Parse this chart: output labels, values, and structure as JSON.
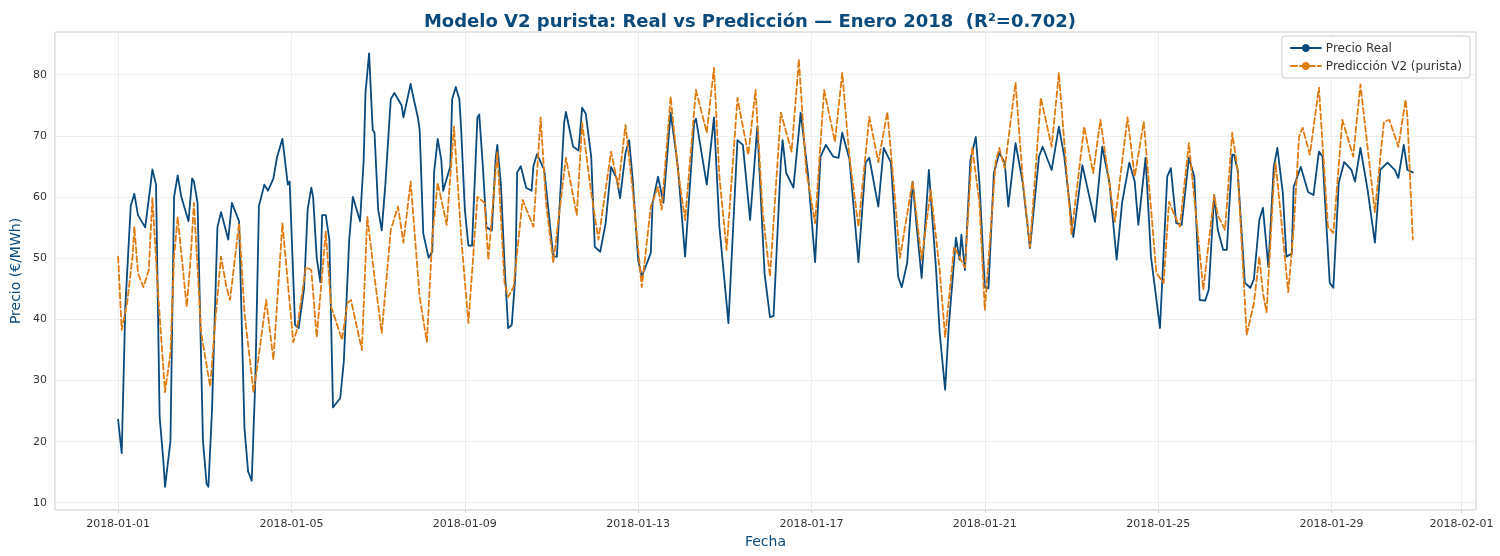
{
  "chart_data": {
    "type": "line",
    "title": "Modelo V2 purista: Real vs Predicción — Enero 2018  (R²=0.702)",
    "xlabel": "Fecha",
    "ylabel": "Precio (€/MWh)",
    "xlim": [
      "2017-12-30T13:00",
      "2018-02-01T08:00"
    ],
    "xticks": [
      "2018-01-01",
      "2018-01-05",
      "2018-01-09",
      "2018-01-13",
      "2018-01-17",
      "2018-01-21",
      "2018-01-25",
      "2018-01-29",
      "2018-02-01"
    ],
    "ylim": [
      8.7,
      87
    ],
    "yticks": [
      10,
      20,
      30,
      40,
      50,
      60,
      70,
      80
    ],
    "grid": true,
    "legend": "top right",
    "series": [
      {
        "name": "Precio Real",
        "color": "#0b4a7c",
        "line_style": "solid",
        "x": [
          "2018-01-01T00:00",
          "2018-01-01T02:00",
          "2018-01-01T04:00",
          "2018-01-01T07:00",
          "2018-01-01T09:00",
          "2018-01-01T11:00",
          "2018-01-01T15:00",
          "2018-01-01T18:00",
          "2018-01-01T19:00",
          "2018-01-01T21:00",
          "2018-01-01T23:00",
          "2018-01-02T01:00",
          "2018-01-02T02:00",
          "2018-01-02T05:00",
          "2018-01-02T07:00",
          "2018-01-02T09:00",
          "2018-01-02T11:00",
          "2018-01-02T15:00",
          "2018-01-02T17:00",
          "2018-01-02T18:00",
          "2018-01-02T20:00",
          "2018-01-02T23:00",
          "2018-01-03T01:00",
          "2018-01-03T02:00",
          "2018-01-03T04:00",
          "2018-01-03T07:00",
          "2018-01-03T09:00",
          "2018-01-03T13:00",
          "2018-01-03T15:00",
          "2018-01-03T19:00",
          "2018-01-03T22:00",
          "2018-01-04T00:00",
          "2018-01-04T02:00",
          "2018-01-04T04:00",
          "2018-01-04T06:00",
          "2018-01-04T09:00",
          "2018-01-04T11:00",
          "2018-01-04T14:00",
          "2018-01-04T16:00",
          "2018-01-04T19:00",
          "2018-01-04T22:00",
          "2018-01-04T23:00",
          "2018-01-05T02:00",
          "2018-01-05T04:00",
          "2018-01-05T07:00",
          "2018-01-05T09:00",
          "2018-01-05T11:00",
          "2018-01-05T12:00",
          "2018-01-05T14:00",
          "2018-01-05T16:00",
          "2018-01-05T17:00",
          "2018-01-05T19:00",
          "2018-01-05T21:00",
          "2018-01-05T23:00",
          "2018-01-06T03:00",
          "2018-01-06T05:00",
          "2018-01-06T08:00",
          "2018-01-06T10:00",
          "2018-01-06T14:00",
          "2018-01-06T16:00",
          "2018-01-06T17:00",
          "2018-01-06T19:00",
          "2018-01-06T21:00",
          "2018-01-06T22:00",
          "2018-01-07T00:00",
          "2018-01-07T02:00",
          "2018-01-07T04:00",
          "2018-01-07T07:00",
          "2018-01-07T09:00",
          "2018-01-07T13:00",
          "2018-01-07T14:00",
          "2018-01-07T18:00",
          "2018-01-07T19:00",
          "2018-01-07T22:00",
          "2018-01-07T23:00",
          "2018-01-08T01:00",
          "2018-01-08T04:00",
          "2018-01-08T06:00",
          "2018-01-08T07:00",
          "2018-01-08T09:00",
          "2018-01-08T11:00",
          "2018-01-08T12:00",
          "2018-01-08T16:00",
          "2018-01-08T17:00",
          "2018-01-08T19:00",
          "2018-01-08T21:00",
          "2018-01-08T22:00",
          "2018-01-09T00:00",
          "2018-01-09T02:00",
          "2018-01-09T04:00",
          "2018-01-09T06:00",
          "2018-01-09T07:00",
          "2018-01-09T08:00",
          "2018-01-09T10:00",
          "2018-01-09T12:00",
          "2018-01-09T15:00",
          "2018-01-09T17:00",
          "2018-01-09T18:00",
          "2018-01-09T20:00",
          "2018-01-09T22:00",
          "2018-01-10T00:00",
          "2018-01-10T02:00",
          "2018-01-10T04:00",
          "2018-01-10T05:00",
          "2018-01-10T07:00",
          "2018-01-10T10:00",
          "2018-01-10T13:00",
          "2018-01-10T14:00",
          "2018-01-10T16:00",
          "2018-01-10T20:00",
          "2018-01-11T01:00",
          "2018-01-11T03:00",
          "2018-01-11T07:00",
          "2018-01-11T08:00",
          "2018-01-11T12:00",
          "2018-01-11T15:00",
          "2018-01-11T17:00",
          "2018-01-11T19:00",
          "2018-01-11T22:00",
          "2018-01-12T00:00",
          "2018-01-12T03:00",
          "2018-01-12T06:00",
          "2018-01-12T09:00",
          "2018-01-12T12:00",
          "2018-01-12T14:00",
          "2018-01-12T17:00",
          "2018-01-12T19:00",
          "2018-01-12T21:00",
          "2018-01-13T00:00",
          "2018-01-13T02:00",
          "2018-01-13T07:00",
          "2018-01-13T08:00",
          "2018-01-13T11:00",
          "2018-01-13T14:00",
          "2018-01-13T18:00",
          "2018-01-13T22:00",
          "2018-01-14T02:00",
          "2018-01-14T07:00",
          "2018-01-14T08:00",
          "2018-01-14T14:00",
          "2018-01-14T18:00",
          "2018-01-14T21:00",
          "2018-01-15T02:00",
          "2018-01-15T07:00",
          "2018-01-15T10:00",
          "2018-01-15T14:00",
          "2018-01-15T18:00",
          "2018-01-15T22:00",
          "2018-01-16T01:00",
          "2018-01-16T03:00",
          "2018-01-16T07:00",
          "2018-01-16T08:00",
          "2018-01-16T10:00",
          "2018-01-16T14:00",
          "2018-01-16T18:00",
          "2018-01-16T22:00",
          "2018-01-17T02:00",
          "2018-01-17T05:00",
          "2018-01-17T08:00",
          "2018-01-17T12:00",
          "2018-01-17T15:00",
          "2018-01-17T17:00",
          "2018-01-17T21:00",
          "2018-01-18T02:00",
          "2018-01-18T06:00",
          "2018-01-18T08:00",
          "2018-01-18T13:00",
          "2018-01-18T16:00",
          "2018-01-18T20:00",
          "2018-01-19T00:00",
          "2018-01-19T02:00",
          "2018-01-19T05:00",
          "2018-01-19T08:00",
          "2018-01-19T10:00",
          "2018-01-19T13:00",
          "2018-01-19T17:00",
          "2018-01-19T21:00",
          "2018-01-19T23:00",
          "2018-01-20T02:00",
          "2018-01-20T04:00",
          "2018-01-20T08:00",
          "2018-01-20T10:00",
          "2018-01-20T11:00",
          "2018-01-20T13:00",
          "2018-01-20T16:00",
          "2018-01-20T19:00",
          "2018-01-20T21:00",
          "2018-01-21T00:00",
          "2018-01-21T02:00",
          "2018-01-21T05:00",
          "2018-01-21T08:00",
          "2018-01-21T11:00",
          "2018-01-21T13:00",
          "2018-01-21T17:00",
          "2018-01-21T21:00",
          "2018-01-22T01:00",
          "2018-01-22T06:00",
          "2018-01-22T08:00",
          "2018-01-22T13:00",
          "2018-01-22T17:00",
          "2018-01-22T20:00",
          "2018-01-23T01:00",
          "2018-01-23T06:00",
          "2018-01-23T13:00",
          "2018-01-23T17:00",
          "2018-01-23T21:00",
          "2018-01-24T01:00",
          "2018-01-24T04:00",
          "2018-01-24T08:00",
          "2018-01-24T11:00",
          "2018-01-24T13:00",
          "2018-01-24T17:00",
          "2018-01-24T20:00",
          "2018-01-25T01:00",
          "2018-01-25T05:00",
          "2018-01-25T07:00",
          "2018-01-25T10:00",
          "2018-01-25T13:00",
          "2018-01-25T17:00",
          "2018-01-25T20:00",
          "2018-01-25T23:00",
          "2018-01-26T02:00",
          "2018-01-26T04:00",
          "2018-01-26T07:00",
          "2018-01-26T09:00",
          "2018-01-26T12:00",
          "2018-01-26T14:00",
          "2018-01-26T17:00",
          "2018-01-26T18:00",
          "2018-01-26T20:00",
          "2018-01-27T00:00",
          "2018-01-27T03:00",
          "2018-01-27T05:00",
          "2018-01-27T08:00",
          "2018-01-27T10:00",
          "2018-01-27T13:00",
          "2018-01-27T16:00",
          "2018-01-27T18:00",
          "2018-01-27T21:00",
          "2018-01-27T23:00",
          "2018-01-28T02:00",
          "2018-01-28T03:00",
          "2018-01-28T07:00",
          "2018-01-28T11:00",
          "2018-01-28T14:00",
          "2018-01-28T17:00",
          "2018-01-28T19:00",
          "2018-01-28T23:00",
          "2018-01-29T01:00",
          "2018-01-29T04:00",
          "2018-01-29T07:00",
          "2018-01-29T11:00",
          "2018-01-29T13:00",
          "2018-01-29T16:00",
          "2018-01-29T20:00",
          "2018-01-30T00:00",
          "2018-01-30T03:00",
          "2018-01-30T07:00",
          "2018-01-30T11:00",
          "2018-01-30T13:00",
          "2018-01-30T16:00",
          "2018-01-30T18:00",
          "2018-01-30T21:00"
        ],
        "values": [
          23.5,
          18,
          42,
          58.5,
          60.5,
          57,
          55,
          62,
          64.5,
          62,
          24,
          17,
          12.5,
          20,
          60,
          63.5,
          60,
          56,
          63,
          62.5,
          59,
          20,
          13,
          12.5,
          25,
          55,
          57.5,
          53,
          59,
          56,
          22,
          15,
          13.5,
          30,
          58.5,
          62,
          61,
          63,
          66.5,
          69.5,
          62,
          62.5,
          39,
          38.5,
          45,
          58,
          61.5,
          60,
          50,
          46,
          57,
          57,
          53,
          25.5,
          27,
          33,
          53,
          60,
          56,
          66,
          77,
          83.5,
          71,
          70.5,
          58,
          54.5,
          62,
          76,
          77,
          75,
          73,
          78.5,
          77,
          73,
          71,
          54,
          50,
          51,
          64,
          69.5,
          66,
          61,
          65,
          76,
          78,
          76,
          71,
          58,
          52,
          52,
          66,
          73,
          73.5,
          65,
          55,
          54.5,
          66,
          68.5,
          62,
          49,
          38.5,
          39,
          47,
          64,
          65,
          61.5,
          61,
          65,
          67,
          64.4,
          50.2,
          50.2,
          72.1,
          73.9,
          68.2,
          67.6,
          74.6,
          73.6,
          66.6,
          51.8,
          51,
          55.7,
          64.9,
          63.1,
          59.8,
          67.2,
          69.3,
          62.8,
          49.7,
          46.9,
          50.8,
          59,
          63.3,
          59,
          73.8,
          64.9,
          50.2,
          72.1,
          72.8,
          62,
          73,
          55.1,
          39.3,
          69.3,
          68.5,
          56.2,
          71.5,
          47.5,
          40.3,
          40.5,
          65.6,
          69.3,
          63.9,
          61.5,
          73.8,
          63.9,
          49.3,
          66.6,
          68.5,
          66.6,
          66.4,
          70.5,
          66.2,
          49.3,
          65.6,
          66.4,
          58.4,
          68,
          65.6,
          46.9,
          45.2,
          49.2,
          62.5,
          55.9,
          46.7,
          64.4,
          48,
          37.7,
          28.4,
          38.7,
          53.3,
          49.7,
          53.8,
          48,
          66.1,
          69.8,
          62.3,
          45.2,
          45,
          63.9,
          67.2,
          65.6,
          58.4,
          68.8,
          62.3,
          51.6,
          66.6,
          68.2,
          64.4,
          71.5,
          66.6,
          53.4,
          65.2,
          55.9,
          68.2,
          62.3,
          49.7,
          59,
          65.6,
          62.5,
          55.4,
          66.4,
          50.2,
          38.5,
          63.3,
          64.7,
          55.7,
          55.4,
          66.4,
          63.3,
          43.1,
          43,
          44.8,
          60.3,
          54.6,
          51.3,
          51.3,
          66.9,
          66.9,
          64.4,
          45.9,
          45.1,
          46.5,
          56.2,
          58.2,
          48.5,
          64.9,
          68,
          60.7,
          50.2,
          50.7,
          61.6,
          64.9,
          60.8,
          60.3,
          67.4,
          66.6,
          45.9,
          45.1,
          62.3,
          65.7,
          64.4,
          62.5,
          68,
          61.1,
          52.5,
          64.4,
          65.6,
          64.4,
          63.1,
          68.5,
          64.4,
          64
        ]
      },
      {
        "name": "Predicción V2 (purista)",
        "color": "#e07b10",
        "line_style": "dashed",
        "x": [
          "2018-01-01T00:00",
          "2018-01-01T02:00",
          "2018-01-01T05:00",
          "2018-01-01T08:00",
          "2018-01-01T09:00",
          "2018-01-01T11:00",
          "2018-01-01T14:00",
          "2018-01-01T17:00",
          "2018-01-01T19:00",
          "2018-01-01T22:00",
          "2018-01-02T02:00",
          "2018-01-02T05:00",
          "2018-01-02T07:00",
          "2018-01-02T09:00",
          "2018-01-02T11:00",
          "2018-01-02T14:00",
          "2018-01-02T16:00",
          "2018-01-02T18:00",
          "2018-01-02T22:00",
          "2018-01-03T03:00",
          "2018-01-03T06:00",
          "2018-01-03T09:00",
          "2018-01-03T12:00",
          "2018-01-03T14:00",
          "2018-01-03T19:00",
          "2018-01-03T22:00",
          "2018-01-04T03:00",
          "2018-01-04T05:00",
          "2018-01-04T10:00",
          "2018-01-04T14:00",
          "2018-01-04T19:00",
          "2018-01-05T01:00",
          "2018-01-05T03:00",
          "2018-01-05T08:00",
          "2018-01-05T11:00",
          "2018-01-05T14:00",
          "2018-01-05T19:00",
          "2018-01-05T22:00",
          "2018-01-06T04:00",
          "2018-01-06T07:00",
          "2018-01-06T09:00",
          "2018-01-06T15:00",
          "2018-01-06T18:00",
          "2018-01-06T22:00",
          "2018-01-07T02:00",
          "2018-01-07T07:00",
          "2018-01-07T11:00",
          "2018-01-07T14:00",
          "2018-01-07T18:00",
          "2018-01-07T23:00",
          "2018-01-08T03:00",
          "2018-01-08T06:00",
          "2018-01-08T09:00",
          "2018-01-08T14:00",
          "2018-01-08T18:00",
          "2018-01-08T22:00",
          "2018-01-09T02:00",
          "2018-01-09T07:00",
          "2018-01-09T11:00",
          "2018-01-09T13:00",
          "2018-01-09T18:00",
          "2018-01-09T22:00",
          "2018-01-10T00:00",
          "2018-01-10T03:00",
          "2018-01-10T08:00",
          "2018-01-10T14:00",
          "2018-01-10T18:00",
          "2018-01-10T21:00",
          "2018-01-11T01:00",
          "2018-01-11T08:00",
          "2018-01-11T14:00",
          "2018-01-11T17:00",
          "2018-01-11T22:00",
          "2018-01-12T02:00",
          "2018-01-12T09:00",
          "2018-01-12T13:00",
          "2018-01-12T17:00",
          "2018-01-12T21:00",
          "2018-01-13T02:00",
          "2018-01-13T07:00",
          "2018-01-13T11:00",
          "2018-01-13T13:00",
          "2018-01-13T18:00",
          "2018-01-13T22:00",
          "2018-01-14T02:00",
          "2018-01-14T08:00",
          "2018-01-14T14:00",
          "2018-01-14T18:00",
          "2018-01-14T21:00",
          "2018-01-15T01:00",
          "2018-01-15T07:00",
          "2018-01-15T13:00",
          "2018-01-15T17:00",
          "2018-01-15T21:00",
          "2018-01-16T01:00",
          "2018-01-16T07:00",
          "2018-01-16T13:00",
          "2018-01-16T17:00",
          "2018-01-16T21:00",
          "2018-01-17T02:00",
          "2018-01-17T07:00",
          "2018-01-17T13:00",
          "2018-01-17T17:00",
          "2018-01-17T21:00",
          "2018-01-18T02:00",
          "2018-01-18T08:00",
          "2018-01-18T13:00",
          "2018-01-18T18:00",
          "2018-01-18T21:00",
          "2018-01-19T01:00",
          "2018-01-19T06:00",
          "2018-01-19T08:00",
          "2018-01-19T13:00",
          "2018-01-19T18:00",
          "2018-01-19T23:00",
          "2018-01-20T02:00",
          "2018-01-20T07:00",
          "2018-01-20T13:00",
          "2018-01-20T17:00",
          "2018-01-20T21:00",
          "2018-01-21T00:00",
          "2018-01-21T06:00",
          "2018-01-21T08:00",
          "2018-01-21T11:00",
          "2018-01-21T17:00",
          "2018-01-21T21:00",
          "2018-01-22T01:00",
          "2018-01-22T07:00",
          "2018-01-22T13:00",
          "2018-01-22T17:00",
          "2018-01-23T00:00",
          "2018-01-23T07:00",
          "2018-01-23T12:00",
          "2018-01-23T16:00",
          "2018-01-24T00:00",
          "2018-01-24T07:00",
          "2018-01-24T11:00",
          "2018-01-24T16:00",
          "2018-01-24T23:00",
          "2018-01-25T03:00",
          "2018-01-25T06:00",
          "2018-01-25T09:00",
          "2018-01-25T12:00",
          "2018-01-25T17:00",
          "2018-01-26T01:00",
          "2018-01-26T07:00",
          "2018-01-26T09:00",
          "2018-01-26T13:00",
          "2018-01-26T17:00",
          "2018-01-26T20:00",
          "2018-01-27T01:00",
          "2018-01-27T05:00",
          "2018-01-27T08:00",
          "2018-01-27T10:00",
          "2018-01-27T12:00",
          "2018-01-27T16:00",
          "2018-01-27T17:00",
          "2018-01-27T20:00",
          "2018-01-28T00:00",
          "2018-01-28T03:00",
          "2018-01-28T06:00",
          "2018-01-28T08:00",
          "2018-01-28T12:00",
          "2018-01-28T17:00",
          "2018-01-28T22:00",
          "2018-01-29T01:00",
          "2018-01-29T06:00",
          "2018-01-29T12:00",
          "2018-01-29T16:00",
          "2018-01-30T00:00",
          "2018-01-30T05:00",
          "2018-01-30T08:00",
          "2018-01-30T13:00",
          "2018-01-30T17:00",
          "2018-01-30T18:00",
          "2018-01-30T21:00"
        ],
        "values": [
          50.2,
          38.2,
          42.6,
          50.2,
          55.1,
          47.5,
          45.2,
          48,
          59.8,
          44.8,
          28,
          34.4,
          50.2,
          56.7,
          50.8,
          42,
          49.2,
          59,
          37.7,
          28.9,
          40.3,
          50.2,
          45.2,
          43.1,
          55.7,
          41,
          28,
          32,
          43.1,
          33.3,
          55.7,
          36.2,
          38.2,
          48.5,
          48,
          37,
          54.3,
          42,
          36.6,
          42.6,
          43.1,
          34.9,
          56.7,
          46.9,
          37.7,
          54.6,
          58.4,
          52.5,
          62.5,
          43.6,
          36.2,
          53.4,
          62.3,
          55.4,
          71.5,
          53.4,
          39.3,
          60,
          59,
          49.7,
          67.4,
          45.9,
          43.6,
          45.2,
          59.5,
          55.1,
          73,
          59,
          49.2,
          66.4,
          57,
          72.1,
          60.7,
          53,
          67.4,
          61.6,
          71.8,
          61,
          45.2,
          58.4,
          61.6,
          57.9,
          76.4,
          64.4,
          56.2,
          77.5,
          70.5,
          81.1,
          63.3,
          51.3,
          76.2,
          66.9,
          77.5,
          57.4,
          46.9,
          73.8,
          67.4,
          82.5,
          64.4,
          55.7,
          77.5,
          69,
          80.3,
          66.6,
          55.1,
          73.1,
          65.7,
          73.9,
          63.9,
          50,
          59,
          62.5,
          49.7,
          61.1,
          48,
          37,
          51.8,
          48.4,
          68.2,
          59,
          41.5,
          65.7,
          68,
          64.7,
          78.7,
          62.8,
          51.8,
          76.2,
          68.2,
          80.3,
          53.8,
          71.5,
          63.9,
          72.6,
          55.9,
          73,
          63.3,
          72.3,
          47.5,
          45.9,
          59.2,
          57,
          55.1,
          68.8,
          44.8,
          60.3,
          57,
          54.6,
          70.5,
          64.4,
          37.4,
          42.6,
          50.2,
          44.3,
          41.1,
          62.3,
          65.6,
          56.7,
          44.4,
          54.6,
          69.8,
          71.3,
          66.9,
          77.9,
          55.1,
          54.1,
          72.6,
          66.6,
          78.4,
          57.5,
          72.3,
          72.6,
          68.2,
          75.9,
          73.1,
          53
        ]
      }
    ]
  }
}
